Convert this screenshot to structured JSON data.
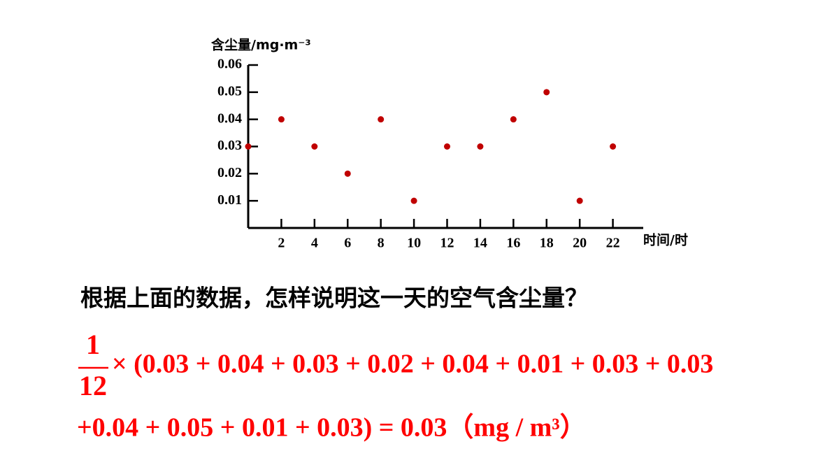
{
  "chart_data": {
    "type": "scatter",
    "y_label": "含尘量/mg·m⁻³",
    "x_label": "时间/时",
    "x": [
      0,
      2,
      4,
      6,
      8,
      10,
      12,
      14,
      16,
      18,
      20,
      22
    ],
    "values": [
      0.03,
      0.04,
      0.03,
      0.02,
      0.04,
      0.01,
      0.03,
      0.03,
      0.04,
      0.05,
      0.01,
      0.03
    ],
    "color": "#c00000",
    "xlim": [
      0,
      24
    ],
    "xticks": [
      2,
      4,
      6,
      8,
      10,
      12,
      14,
      16,
      18,
      20,
      22
    ],
    "ylim": [
      0,
      0.06
    ],
    "yticks": [
      0.01,
      0.02,
      0.03,
      0.04,
      0.05,
      0.06
    ]
  },
  "question": "根据上面的数据，怎样说明这一天的空气含尘量？",
  "formula": {
    "numerator": "1",
    "denominator": "12",
    "line1": "× (0.03 + 0.04 + 0.03 + 0.02 + 0.04 + 0.01 + 0.03 + 0.03",
    "line2": "+0.04 + 0.05 + 0.01 + 0.03) = 0.03（mg / m³）"
  }
}
